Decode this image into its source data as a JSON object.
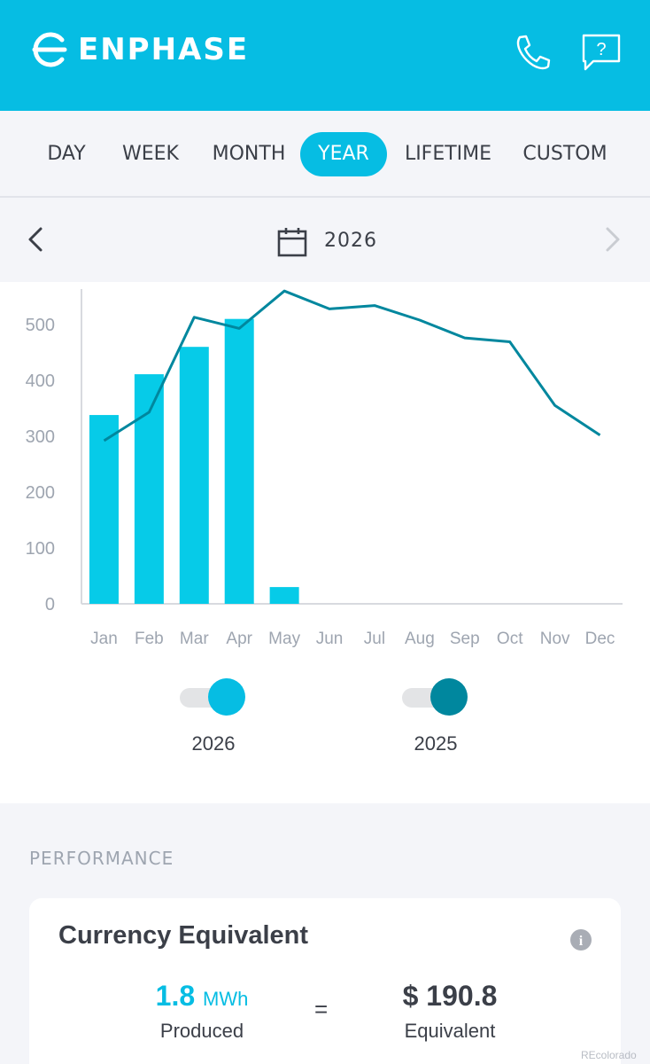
{
  "app": {
    "brand": "ENPHASE"
  },
  "colors": {
    "accent": "#06bde3",
    "series_2026": "#06cbe8",
    "series_2025": "#00879e",
    "text": "#3b3f48"
  },
  "header": {
    "icons": [
      "phone-icon",
      "help-icon"
    ],
    "help_glyph": "?"
  },
  "tabs": [
    {
      "label": "DAY",
      "active": false
    },
    {
      "label": "WEEK",
      "active": false
    },
    {
      "label": "MONTH",
      "active": false
    },
    {
      "label": "YEAR",
      "active": true
    },
    {
      "label": "LIFETIME",
      "active": false
    },
    {
      "label": "CUSTOM",
      "active": false
    }
  ],
  "date_nav": {
    "period": "2026",
    "icons": [
      "chevron-left-icon",
      "calendar-icon",
      "chevron-right-icon"
    ]
  },
  "chart_data": {
    "type": "bar",
    "categories": [
      "Jan",
      "Feb",
      "Mar",
      "Apr",
      "May",
      "Jun",
      "Jul",
      "Aug",
      "Sep",
      "Oct",
      "Nov",
      "Dec"
    ],
    "series": [
      {
        "name": "2026",
        "type": "bar",
        "values": [
          338,
          411,
          460,
          510,
          30,
          null,
          null,
          null,
          null,
          null,
          null,
          null
        ]
      },
      {
        "name": "2025",
        "type": "line",
        "values": [
          292,
          343,
          513,
          493,
          560,
          528,
          534,
          508,
          476,
          469,
          355,
          302
        ]
      }
    ],
    "ylim": [
      0,
      560
    ],
    "yticks": [
      "0",
      "100",
      "200",
      "300",
      "400",
      "500"
    ],
    "grid": false,
    "title": "",
    "xlabel": "",
    "ylabel": ""
  },
  "legend": {
    "items": [
      {
        "label": "2026",
        "enabled": true
      },
      {
        "label": "2025",
        "enabled": true
      }
    ]
  },
  "performance": {
    "section_label": "PERFORMANCE",
    "card": {
      "title": "Currency Equivalent",
      "icon": "info-icon",
      "info_glyph": "i",
      "produced_value": "1.8",
      "produced_unit": "MWh",
      "produced_label": "Produced",
      "equals": "=",
      "equivalent_value": "$ 190.8",
      "equivalent_label": "Equivalent"
    }
  },
  "watermark": "REcolorado"
}
